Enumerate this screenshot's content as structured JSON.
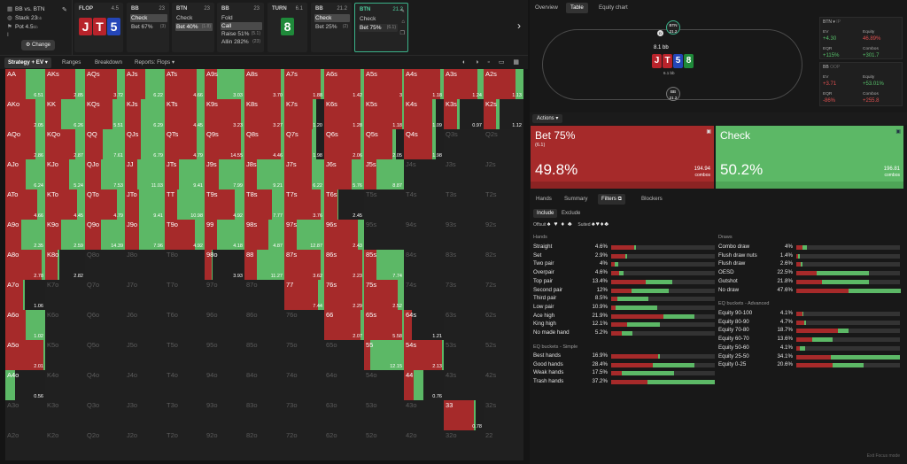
{
  "context": {
    "matchup": "BB vs. BTN",
    "stack": "Stack 23",
    "stack_unit": "bb",
    "pot": "Pot 4.5",
    "pot_unit": "bb",
    "change_label": "Change"
  },
  "steps": [
    {
      "name": "FLOP",
      "amt": "4.5",
      "cards": [
        "J",
        "T",
        "5"
      ]
    },
    {
      "name": "BB",
      "amt": "23",
      "actions": [
        {
          "label": "Check",
          "sel": true,
          "cnt": ""
        },
        {
          "label": "Bet 67%",
          "sel": false,
          "cnt": "(3)"
        }
      ]
    },
    {
      "name": "BTN",
      "amt": "23",
      "actions": [
        {
          "label": "Check",
          "sel": false,
          "cnt": ""
        },
        {
          "label": "Bet 40%",
          "sel": true,
          "cnt": "(1.8)"
        }
      ]
    },
    {
      "name": "BB",
      "amt": "23",
      "actions": [
        {
          "label": "Fold",
          "sel": false,
          "cnt": ""
        },
        {
          "label": "Call",
          "sel": true,
          "cnt": ""
        },
        {
          "label": "Raise 51%",
          "sel": false,
          "cnt": "(5.1)"
        },
        {
          "label": "Allin 282%",
          "sel": false,
          "cnt": "(23)"
        }
      ]
    },
    {
      "name": "TURN",
      "amt": "6.1",
      "cards": [
        "8"
      ]
    },
    {
      "name": "BB",
      "amt": "21.2",
      "actions": [
        {
          "label": "Check",
          "sel": true,
          "cnt": ""
        },
        {
          "label": "Bet 25%",
          "sel": false,
          "cnt": "(2)"
        }
      ]
    },
    {
      "name": "BTN",
      "amt": "21.2",
      "actions": [
        {
          "label": "Check",
          "sel": false,
          "cnt": ""
        },
        {
          "label": "Bet 75%",
          "sel": false,
          "cnt": "(6.1)"
        }
      ]
    }
  ],
  "toolbar": {
    "strategy": "Strategy + EV",
    "ranges": "Ranges",
    "breakdown": "Breakdown",
    "reports": "Reports: Flops"
  },
  "grid": {
    "ranks": [
      "A",
      "K",
      "Q",
      "J",
      "T",
      "9",
      "8",
      "7",
      "6",
      "5",
      "4",
      "3",
      "2"
    ],
    "cells": [
      [
        "AA|6.51|0.5|1|b",
        "AKs|2.85|0.75|1|b",
        "AQs|3.72|0.8|1|b",
        "AJs|6.22|0.5|1|b",
        "ATs|4.66|0.8|1|b",
        "A9s|3.03|0.3|1|b",
        "A8s|3.70|0.9|1|b",
        "A7s|1.88|0.9|1|b",
        "A6s|1.42|0.9|1|b",
        "A5s|3|0.95|1|b",
        "A4s|1.18|0.9|1|b",
        "A3s|1.24|0.85|1|b",
        "A2s|1.13|0.8|1|b"
      ],
      [
        "AKo|2.05|0.75|1|b",
        "KK|6.26|0.4|1|b",
        "KQs|5.51|0.7|1|b",
        "KJs|6.29|0.4|1|b",
        "KTs|4.45|0.8|1|b",
        "K9s|3.23|0.9|1|b",
        "K8s|3.27|0.9|1|b",
        "K7s|1.20|0.9|0.8|b",
        "K6s|1.28|0.9|1|b",
        "K5s|1.18|0.95|1|b",
        "K4s|1.09|0.9|0.8|b",
        "K3s|0.97|0.85|0.4|b",
        "K2s|1.12|0.8|0.4|b"
      ],
      [
        "AQo|2.86|0.75|1|b",
        "KQo|2.87|0.75|1|b",
        "QQ|7.61|0.45|1|b",
        "QJs|6.79|0.4|1|b",
        "QTs|4.79|0.8|1|b",
        "Q9s|14.55|0.9|1|b",
        "Q8s|4.46|0.9|1|b",
        "Q7s|1.98|0.85|0.8|b",
        "Q6s|2.06|0.9|1|b",
        "Q5s|2.05|0.9|0.8|b",
        "Q4s|1.98|0.9|0.8|b",
        "Q3s||0|0|d",
        "Q2s||0|0|d"
      ],
      [
        "AJo|6.24|0.5|1|b",
        "KJo|5.24|0.6|1|b",
        "QJo|7.53|0.4|1|b",
        "JJ|11.03|0.3|1|b",
        "JTs|9.41|0.35|1|b",
        "J9s|7.99|0.35|1|b",
        "J8s|9.21|0.3|1|b",
        "J7s|6.22|0.7|1|b",
        "J6s|5.76|0.7|1|b",
        "J5s|8.87|0.3|1|b",
        "J4s||0|0|d",
        "J3s||0|0|d",
        "J2s||0|0|d"
      ],
      [
        "ATo|4.66|0.8|1|b",
        "KTo|4.45|0.8|1|b",
        "QTo|4.79|0.8|1|b",
        "JTo|9.41|0.35|1|b",
        "TT|10.98|0.3|1|b",
        "T9s|4.92|0.75|1|b",
        "T8s|7.77|0.7|1|b",
        "T7s|3.76|0.9|1|b",
        "T6s|2.45|0.95|0.35|b",
        "T5s||0|0|d",
        "T4s||0|0|d",
        "T3s||0|0|d",
        "T2s||0|0|d"
      ],
      [
        "A9o|2.35|0.4|1|b",
        "K9o|2.59|0.4|1|b",
        "Q9o|14.39|0.4|1|b",
        "J9o|7.96|0.35|1|b",
        "T9o|4.92|0.75|1|b",
        "99|4.18|0.3|1|b",
        "98s|4.87|0.6|1|b",
        "97s|12.87|0.3|1|b",
        "96s|2.43|0.85|1|b",
        "95s||0|0|d",
        "94s||0|0|d",
        "93s||0|0|d",
        "92s||0|0|d"
      ],
      [
        "A8o|2.78|0.9|1|b",
        "K8o|2.82|0.9|0.35|b",
        "Q8o||0|0|d",
        "J8o||0|0|d",
        "T8o||0|0|d",
        "98o|3.93|0.9|0.2|b",
        "88|11.27|0.3|1|b",
        "87s|3.62|0.9|1|b",
        "86s|2.23|0.95|1|b",
        "85s|7.74|0.3|1|b",
        "84s||0|0|d",
        "83s||0|0|d",
        "82s||0|0|d"
      ],
      [
        "A7o|1.06|0.9|0.5|b",
        "K7o||0|0|d",
        "Q7o||0|0|d",
        "J7o||0|0|d",
        "T7o||0|0|d",
        "97o||0|0|d",
        "87o||0|0|d",
        "77|7.44|0.85|1|b",
        "76s|2.29|0.95|1|b",
        "75s|2.52|0.85|1|b",
        "74s||0|0|d",
        "73s||0|0|d",
        "72s||0|0|d"
      ],
      [
        "A6o|1.02|0.5|1|b",
        "K6o||0|0|d",
        "Q6o||0|0|d",
        "J6o||0|0|d",
        "T6o||0|0|d",
        "96o||0|0|d",
        "86o||0|0|d",
        "76o||0|0|d",
        "66|2.07|0.9|1|b",
        "65s|5.58|0.95|1|b",
        "64s|1.21|0.95|0.2|b",
        "63s||0|0|d",
        "62s||0|0|d"
      ],
      [
        "A5o|2.01|0.95|1|b",
        "K5o||0|0|d",
        "Q5o||0|0|d",
        "J5o||0|0|d",
        "T5o||0|0|d",
        "95o||0|0|d",
        "85o||0|0|d",
        "75o||0|0|d",
        "65o||0|0|d",
        "55|12.15|0.15|1|b",
        "54s|2.13|0.95|1|b",
        "53s||0|0|d",
        "52s||0|0|d"
      ],
      [
        "A4o|0.56|0|0.25|b",
        "K4o||0|0|d",
        "Q4o||0|0|d",
        "J4o||0|0|d",
        "T4o||0|0|d",
        "94o||0|0|d",
        "84o||0|0|d",
        "74o||0|0|d",
        "64o||0|0|d",
        "54o||0|0|d",
        "44|0.76|0.5|0.5|b",
        "43s||0|0|d",
        "42s||0|0|d"
      ],
      [
        "A3o||0|0|d",
        "K3o||0|0|d",
        "Q3o||0|0|d",
        "J3o||0|0|d",
        "T3o||0|0|d",
        "93o||0|0|d",
        "83o||0|0|d",
        "73o||0|0|d",
        "63o||0|0|d",
        "53o||0|0|d",
        "43o||0|0|d",
        "33|0.78|0.95|0.8|b",
        "32s||0|0|d"
      ],
      [
        "A2o||0|0|d",
        "K2o||0|0|d",
        "Q2o||0|0|d",
        "J2o||0|0|d",
        "T2o||0|0|d",
        "92o||0|0|d",
        "82o||0|0|d",
        "72o||0|0|d",
        "62o||0|0|d",
        "52o||0|0|d",
        "42o||0|0|d",
        "32o||0|0|d",
        "22||0|0|d"
      ]
    ]
  },
  "right": {
    "tabs": [
      "Overview",
      "Table",
      "Equity chart"
    ],
    "table": {
      "btn_seat": "BTN",
      "btn_stack": "21.2",
      "bb_seat": "BB",
      "bb_stack": "21.2",
      "pot": "8.1 bb",
      "board": [
        "J",
        "T",
        "5",
        "8"
      ],
      "sub": "6.1 bb"
    },
    "btn_stats": {
      "hdr": "BTN",
      "ev_k": "EV",
      "ev_v": "+4.30",
      "eq_k": "Equity",
      "eq_v": "46.89%",
      "eqr_k": "EQR",
      "eqr_v": "+115%",
      "cb_k": "Combos",
      "cb_v": "+301.7"
    },
    "bb_stats": {
      "hdr": "BB",
      "ev_k": "EV",
      "ev_v": "+3.71",
      "eq_k": "Equity",
      "eq_v": "+53.01%",
      "eqr_k": "EQR",
      "eqr_v": "-86%",
      "cb_k": "Combos",
      "cb_v": "+255.8"
    },
    "actions_label": "Actions",
    "bet": {
      "title": "Bet 75%",
      "sub": "(6.1)",
      "pct": "49.8%",
      "combos": "194.94",
      "combos_lbl": "combos"
    },
    "check": {
      "title": "Check",
      "pct": "50.2%",
      "combos": "196.81",
      "combos_lbl": "combos"
    },
    "subtabs": [
      "Hands",
      "Summary",
      "Filters",
      "Blockers"
    ],
    "include": "Include",
    "exclude": "Exclude",
    "offsuit": "Offsuit",
    "suited": "Suited",
    "hands_title": "Hands",
    "hands": [
      {
        "n": "Straight",
        "p": "4.6%",
        "r": 0.22,
        "g": 0.02
      },
      {
        "n": "Set",
        "p": "2.9%",
        "r": 0.14,
        "g": 0.02
      },
      {
        "n": "Two pair",
        "p": "4%",
        "r": 0.03,
        "g": 0.03
      },
      {
        "n": "Overpair",
        "p": "4.6%",
        "r": 0.08,
        "g": 0.04
      },
      {
        "n": "Top pair",
        "p": "13.4%",
        "r": 0.33,
        "g": 0.26
      },
      {
        "n": "Second pair",
        "p": "12%",
        "r": 0.2,
        "g": 0.36
      },
      {
        "n": "Third pair",
        "p": "8.5%",
        "r": 0.06,
        "g": 0.3
      },
      {
        "n": "Low pair",
        "p": "10.9%",
        "r": 0.04,
        "g": 0.4
      },
      {
        "n": "Ace high",
        "p": "21.9%",
        "r": 0.5,
        "g": 0.3
      },
      {
        "n": "King high",
        "p": "12.1%",
        "r": 0.15,
        "g": 0.32
      },
      {
        "n": "No made hand",
        "p": "5.2%",
        "r": 0.1,
        "g": 0.1
      }
    ],
    "eqs_title": "EQ buckets - Simple",
    "eq_simple": [
      {
        "n": "Best hands",
        "p": "16.9%",
        "r": 0.45,
        "g": 0.02
      },
      {
        "n": "Good hands",
        "p": "28.4%",
        "r": 0.4,
        "g": 0.4
      },
      {
        "n": "Weak hands",
        "p": "17.5%",
        "r": 0.1,
        "g": 0.5
      },
      {
        "n": "Trash hands",
        "p": "37.2%",
        "r": 0.35,
        "g": 0.65
      }
    ],
    "draws_title": "Draws",
    "draws": [
      {
        "n": "Combo draw",
        "p": "4%",
        "r": 0.06,
        "g": 0.04
      },
      {
        "n": "Flush draw nuts",
        "p": "1.4%",
        "r": 0.02,
        "g": 0.02
      },
      {
        "n": "Flush draw",
        "p": "2.6%",
        "r": 0.04,
        "g": 0.02
      },
      {
        "n": "OESD",
        "p": "22.5%",
        "r": 0.2,
        "g": 0.5
      },
      {
        "n": "Gutshot",
        "p": "21.8%",
        "r": 0.25,
        "g": 0.45
      },
      {
        "n": "No draw",
        "p": "47.6%",
        "r": 0.5,
        "g": 0.5
      }
    ],
    "eqa_title": "EQ buckets - Advanced",
    "eq_adv": [
      {
        "n": "Equity 90-100",
        "p": "4.1%",
        "r": 0.06,
        "g": 0.01
      },
      {
        "n": "Equity 80-90",
        "p": "4.7%",
        "r": 0.08,
        "g": 0.02
      },
      {
        "n": "Equity 70-80",
        "p": "18.7%",
        "r": 0.4,
        "g": 0.1
      },
      {
        "n": "Equity 60-70",
        "p": "13.6%",
        "r": 0.15,
        "g": 0.2
      },
      {
        "n": "Equity 50-60",
        "p": "4.1%",
        "r": 0.03,
        "g": 0.05
      },
      {
        "n": "Equity 25-50",
        "p": "34.1%",
        "r": 0.33,
        "g": 0.67
      },
      {
        "n": "Equity 0-25",
        "p": "20.6%",
        "r": 0.35,
        "g": 0.3
      }
    ],
    "exit": "Exit Focus mode"
  },
  "colors": {
    "bet": "#a62a2a",
    "check": "#5cb866",
    "accent": "#3bb38a"
  }
}
